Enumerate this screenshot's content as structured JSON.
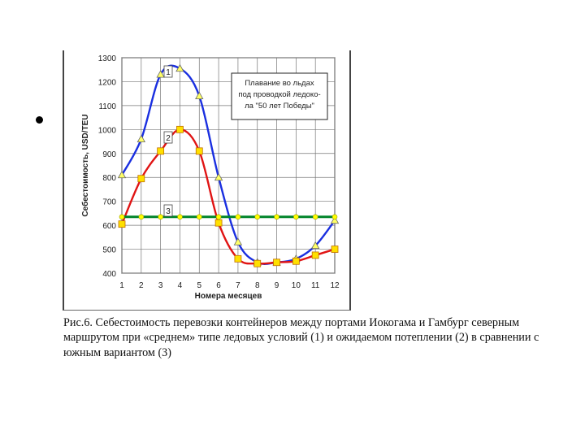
{
  "slide": {
    "caption": "Рис.6. Себестоимость перевозки контейнеров между портами Иокогама и Гамбург северным маршрутом при «среднем» типе ледовых условий (1) и ожидаемом потеплении (2) в сравнении с южным вариантом (3)"
  },
  "chart_data": {
    "type": "line",
    "title": "",
    "xlabel": "Номера месяцев",
    "ylabel": "Себестоимость, USD/TEU",
    "categories": [
      "1",
      "2",
      "3",
      "4",
      "5",
      "6",
      "7",
      "8",
      "9",
      "10",
      "11",
      "12"
    ],
    "ylim": [
      400,
      1300
    ],
    "yticks": [
      400,
      500,
      600,
      700,
      800,
      900,
      1000,
      1100,
      1200,
      1300
    ],
    "grid": true,
    "series": [
      {
        "name": "1",
        "color": "#1a2fe0",
        "marker": "triangle",
        "values": [
          810,
          960,
          1230,
          1255,
          1140,
          800,
          530,
          445,
          445,
          460,
          515,
          620
        ]
      },
      {
        "name": "2",
        "color": "#e01414",
        "marker": "square",
        "values": [
          605,
          795,
          910,
          1000,
          910,
          610,
          460,
          440,
          445,
          450,
          475,
          500
        ]
      },
      {
        "name": "3",
        "color": "#00842a",
        "marker": "circle",
        "values": [
          635,
          635,
          635,
          635,
          635,
          635,
          635,
          635,
          635,
          635,
          635,
          635
        ]
      }
    ],
    "annotation": "Плавание во льдах под проводкой ледокола \"50 лет Победы\"",
    "annotation_lines": [
      "Плавание во льдах",
      "под проводкой ледоко-",
      "ла \"50 лет Победы\""
    ]
  }
}
